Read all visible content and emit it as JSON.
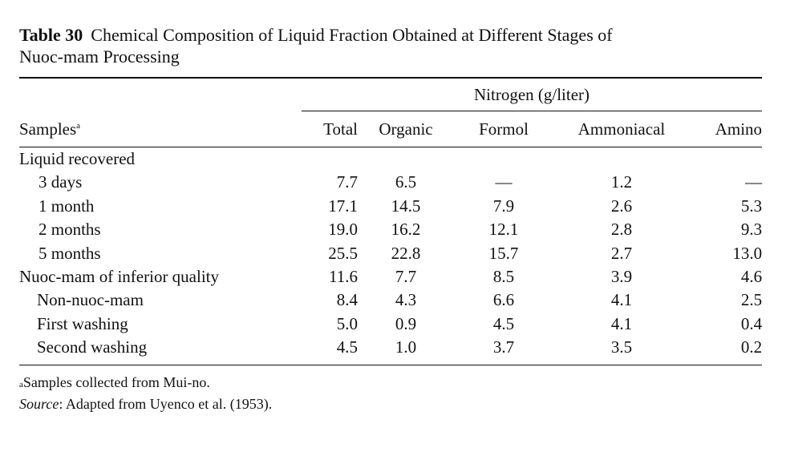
{
  "caption": {
    "table_number": "Table 30",
    "title_line1": "Chemical Composition of Liquid Fraction Obtained at Different Stages of",
    "title_line2": "Nuoc-mam Processing"
  },
  "header": {
    "group_label": "Nitrogen (g/liter)",
    "samples_label": "Samples",
    "samples_footnote_mark": "a",
    "columns": [
      "Total",
      "Organic",
      "Formol",
      "Ammoniacal",
      "Amino"
    ]
  },
  "rows": [
    {
      "label": "Liquid recovered",
      "values": [
        "",
        "",
        "",
        "",
        ""
      ]
    },
    {
      "label": "3 days",
      "values": [
        "7.7",
        "6.5",
        "—",
        "1.2",
        "—"
      ]
    },
    {
      "label": "1 month",
      "values": [
        "17.1",
        "14.5",
        "7.9",
        "2.6",
        "5.3"
      ]
    },
    {
      "label": "2 months",
      "values": [
        "19.0",
        "16.2",
        "12.1",
        "2.8",
        "9.3"
      ]
    },
    {
      "label": "5 months",
      "values": [
        "25.5",
        "22.8",
        "15.7",
        "2.7",
        "13.0"
      ]
    },
    {
      "label": "Nuoc-mam of inferior quality",
      "values": [
        "11.6",
        "7.7",
        "8.5",
        "3.9",
        "4.6"
      ]
    },
    {
      "label": "Non-nuoc-mam",
      "values": [
        "8.4",
        "4.3",
        "6.6",
        "4.1",
        "2.5"
      ]
    },
    {
      "label": "First washing",
      "values": [
        "5.0",
        "0.9",
        "4.5",
        "4.1",
        "0.4"
      ]
    },
    {
      "label": "Second washing",
      "values": [
        "4.5",
        "1.0",
        "3.7",
        "3.5",
        "0.2"
      ]
    }
  ],
  "footnotes": {
    "a_mark": "a",
    "a_text": "Samples collected from Mui-no.",
    "source_label": "Source",
    "source_text": ": Adapted from Uyenco et al. (1953)."
  }
}
